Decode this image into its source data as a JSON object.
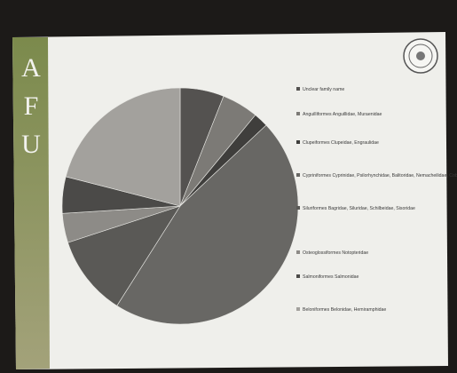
{
  "sidebar": [
    "A",
    "F",
    "U"
  ],
  "chart_data": {
    "type": "pie",
    "categories": [
      "Unclear family name",
      "Anguilliformes Anguillidae, Muraenidae",
      "Clupeiformes Clupeidae, Engraulidae",
      "Cypriniformes Cyprinidae, Psilorhynchidae, Balitoridae, Nemacheilidae, Cobitidae",
      "Siluriformes Bagridae, Siluridae, Schilbeidae, Sisoridae",
      "Osteoglossiformes Notopteridae",
      "Salmoniformes Salmonidae",
      "Beloniformes Belonidae, Hemiramphidae"
    ],
    "values": [
      6,
      5,
      2,
      46,
      11,
      4,
      5,
      21
    ],
    "colors": [
      "#545250",
      "#7c7a76",
      "#3f3e3c",
      "#686764",
      "#5a5956",
      "#8d8b87",
      "#4b4a48",
      "#a3a19d"
    ]
  }
}
